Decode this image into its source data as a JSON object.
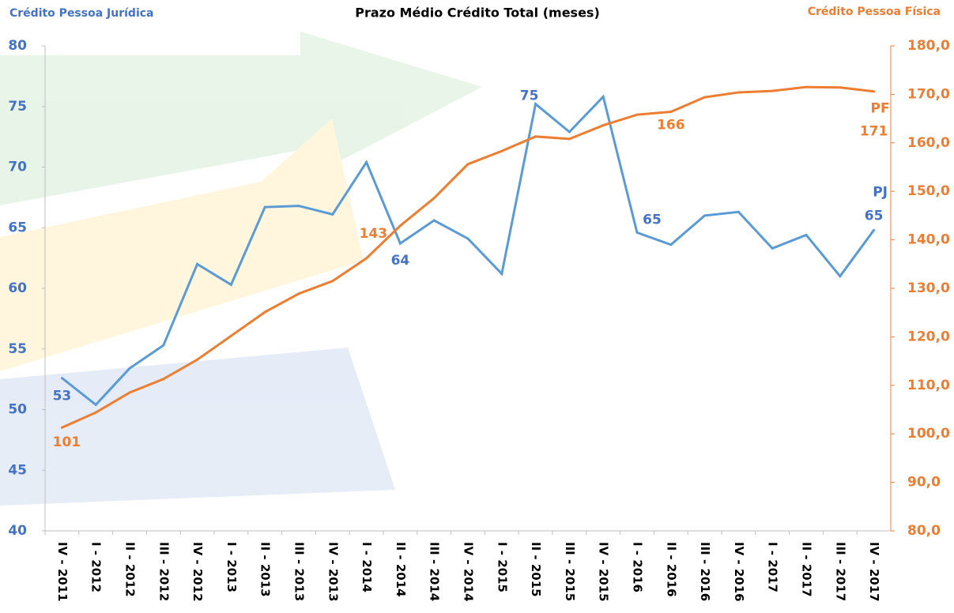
{
  "chart_data": {
    "type": "line",
    "title": "Prazo Médio Crédito Total (meses)",
    "y_label": "Crédito Pessoa Jurídica",
    "y2_label": "Crédito Pessoa Física",
    "categories": [
      "IV - 2011",
      "I - 2012",
      "II - 2012",
      "III - 2012",
      "IV - 2012",
      "I - 2013",
      "II - 2013",
      "III - 2013",
      "IV - 2013",
      "I - 2014",
      "II - 2014",
      "III - 2014",
      "IV - 2014",
      "I - 2015",
      "II - 2015",
      "III - 2015",
      "IV - 2015",
      "I - 2016",
      "II - 2016",
      "III - 2016",
      "IV - 2016",
      "I - 2017",
      "II - 2017",
      "III - 2017",
      "IV - 2017"
    ],
    "series": [
      {
        "name": "PJ",
        "color": "#5b9bd5",
        "label_color": "#4472c4",
        "values": [
          52.6,
          50.4,
          53.4,
          55.3,
          62.0,
          60.3,
          66.7,
          66.8,
          66.1,
          70.4,
          63.7,
          65.6,
          64.1,
          61.2,
          75.2,
          72.9,
          75.8,
          64.6,
          63.6,
          66.0,
          66.3,
          63.3,
          64.4,
          61.0,
          64.8
        ],
        "value_labels": [
          "53",
          null,
          null,
          null,
          null,
          null,
          null,
          null,
          null,
          null,
          "64",
          null,
          null,
          null,
          "75",
          null,
          null,
          "65",
          null,
          null,
          null,
          null,
          null,
          null,
          "65"
        ]
      },
      {
        "name": "PF",
        "color": "#ed7d31",
        "label_color": "#ed7d31",
        "axis": "y2",
        "values": [
          101.3,
          104.4,
          108.5,
          111.3,
          115.3,
          120.2,
          125.1,
          128.9,
          131.5,
          136.2,
          142.9,
          148.6,
          155.6,
          158.3,
          161.3,
          160.8,
          163.6,
          165.8,
          166.4,
          169.4,
          170.4,
          170.7,
          171.5,
          171.4,
          170.6
        ],
        "value_labels": [
          "101",
          null,
          null,
          null,
          null,
          null,
          null,
          null,
          null,
          null,
          "143",
          null,
          null,
          null,
          null,
          null,
          null,
          null,
          "166",
          null,
          null,
          null,
          null,
          null,
          "171"
        ]
      }
    ],
    "ylim": [
      40,
      80
    ],
    "yticks": [
      40,
      45,
      50,
      55,
      60,
      65,
      70,
      75,
      80
    ],
    "y2lim": [
      80,
      180
    ],
    "y2ticks": [
      {
        "value": 80,
        "label": "80,0"
      },
      {
        "value": 90,
        "label": "90,0"
      },
      {
        "value": 100,
        "label": "100,0"
      },
      {
        "value": 110,
        "label": "110,0"
      },
      {
        "value": 120,
        "label": "120,0"
      },
      {
        "value": 130,
        "label": "130,0"
      },
      {
        "value": 140,
        "label": "140,0"
      },
      {
        "value": 150,
        "label": "150,0"
      },
      {
        "value": 160,
        "label": "160,0"
      },
      {
        "value": 170,
        "label": "170,0"
      },
      {
        "value": 180,
        "label": "180,0"
      }
    ],
    "grid": false
  }
}
